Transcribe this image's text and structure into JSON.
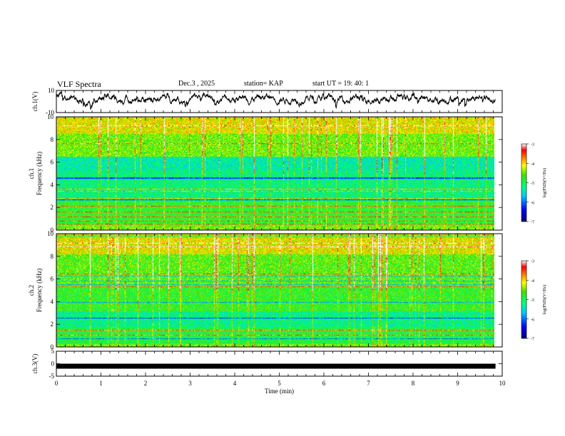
{
  "header": {
    "title": "VLF Spectra",
    "date": "Dec.3 , 2025",
    "station": "station= KAP",
    "start": "start UT = 19: 40: 1"
  },
  "chart_data": [
    {
      "type": "line",
      "name": "ch1-waveform",
      "ylabel": "ch.1(V)",
      "ylim": [
        -10,
        10
      ],
      "yticks": [
        "10",
        "-10"
      ],
      "xlim": [
        0,
        10
      ],
      "note": "continuous noisy waveform, mostly between about -3 and 10 V"
    },
    {
      "type": "heatmap",
      "name": "ch1-spectrogram",
      "ylabel": "ch.1 Frequency (kHz)",
      "ylim": [
        0,
        10
      ],
      "yticks": [
        "0",
        "2",
        "4",
        "6",
        "8",
        "10"
      ],
      "xlim": [
        0,
        10
      ],
      "colorbar": {
        "label": "log(PSD)(V²/Hz)",
        "range": [
          -7,
          -3
        ],
        "ticks": [
          "-3",
          "-4",
          "-5",
          "-6",
          "-7"
        ]
      }
    },
    {
      "type": "heatmap",
      "name": "ch2-spectrogram",
      "ylabel": "ch.2 Frequency (kHz)",
      "ylim": [
        0,
        10
      ],
      "yticks": [
        "0",
        "2",
        "4",
        "6",
        "8",
        "10"
      ],
      "xlim": [
        0,
        10
      ],
      "colorbar": {
        "label": "log(PSD)(V²/Hz)",
        "range": [
          -7,
          -3
        ],
        "ticks": [
          "-3",
          "-4",
          "-5",
          "-6",
          "-7"
        ]
      }
    },
    {
      "type": "line",
      "name": "ch3-waveform",
      "ylabel": "ch.3(V)",
      "ylim": [
        -5,
        5
      ],
      "yticks": [
        "5",
        "0",
        "-5"
      ],
      "xlim": [
        0,
        10
      ],
      "note": "flat thick trace near -1 V"
    }
  ],
  "xaxis": {
    "label": "Time (min)",
    "ticks": [
      "0",
      "1",
      "2",
      "3",
      "4",
      "5",
      "6",
      "7",
      "8",
      "9",
      "10"
    ]
  },
  "colors": {
    "ramp": [
      "#00006a",
      "#0000ff",
      "#00c8ff",
      "#00ff80",
      "#40e000",
      "#ffff00",
      "#ff8000",
      "#ff0000",
      "#ffffff"
    ]
  }
}
